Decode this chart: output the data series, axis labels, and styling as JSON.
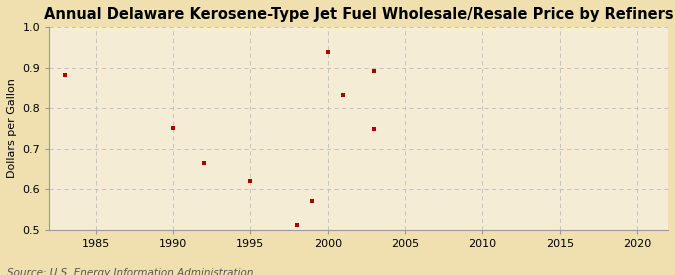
{
  "title": "Annual Delaware Kerosene-Type Jet Fuel Wholesale/Resale Price by Refiners",
  "ylabel": "Dollars per Gallon",
  "source": "Source: U.S. Energy Information Administration",
  "xlim": [
    1982,
    2022
  ],
  "ylim": [
    0.5,
    1.0
  ],
  "xticks": [
    1985,
    1990,
    1995,
    2000,
    2005,
    2010,
    2015,
    2020
  ],
  "yticks": [
    0.5,
    0.6,
    0.7,
    0.8,
    0.9,
    1.0
  ],
  "data_x": [
    1983,
    1990,
    1992,
    1992,
    1995,
    1998,
    1999,
    2000,
    2001,
    2003,
    2003
  ],
  "data_y": [
    0.882,
    0.752,
    0.665,
    0.665,
    0.621,
    0.513,
    0.572,
    0.938,
    0.833,
    0.748,
    0.891
  ],
  "marker_color": "#aa0000",
  "marker": "s",
  "marker_size": 3.5,
  "background_color": "#f0e0b0",
  "plot_bg_color": "#f5ecd5",
  "grid_color": "#bbbbbb",
  "spine_color": "#999999",
  "title_fontsize": 10.5,
  "title_fontweight": "bold",
  "label_fontsize": 8,
  "tick_fontsize": 8,
  "source_fontsize": 7.5
}
